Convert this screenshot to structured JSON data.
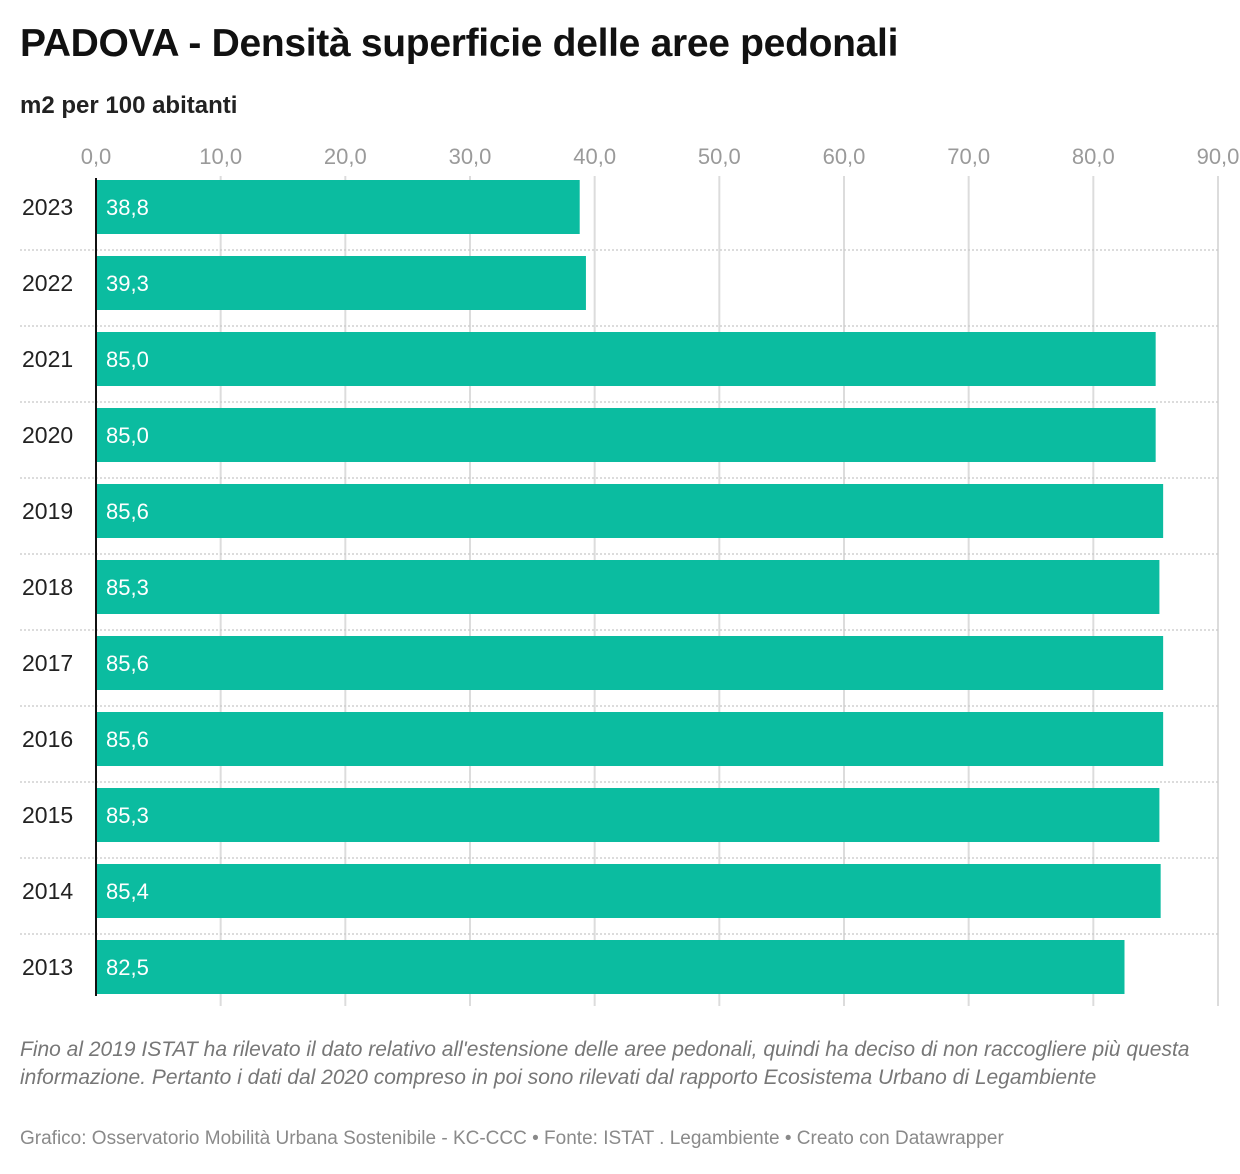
{
  "header": {
    "title": "PADOVA - Densità superficie delle aree pedonali",
    "subtitle": "m2 per 100 abitanti"
  },
  "footer": {
    "note": "Fino al 2019 ISTAT ha rilevato il dato relativo all'estensione delle aree pedonali, quindi ha deciso di non raccogliere più questa informazione. Pertanto i dati dal 2020 compreso in poi sono rilevati dal rapporto Ecosistema Urbano di Legambiente",
    "credits": "Grafico: Osservatorio Mobilità Urbana Sostenibile - KC-CCC • Fonte: ISTAT . Legambiente • Creato con Datawrapper"
  },
  "colors": {
    "bar": "#0bbca0",
    "grid": "#dcdcdc",
    "axis": "#111111"
  },
  "chart_data": {
    "type": "bar",
    "orientation": "horizontal",
    "title": "PADOVA - Densità superficie delle aree pedonali",
    "subtitle": "m2 per 100 abitanti",
    "categories": [
      "2023",
      "2022",
      "2021",
      "2020",
      "2019",
      "2018",
      "2017",
      "2016",
      "2015",
      "2014",
      "2013"
    ],
    "values": [
      38.8,
      39.3,
      85.0,
      85.0,
      85.6,
      85.3,
      85.6,
      85.6,
      85.3,
      85.4,
      82.5
    ],
    "value_labels": [
      "38,8",
      "39,3",
      "85,0",
      "85,0",
      "85,6",
      "85,3",
      "85,6",
      "85,6",
      "85,3",
      "85,4",
      "82,5"
    ],
    "xlim": [
      0,
      90
    ],
    "xticks": [
      0,
      10,
      20,
      30,
      40,
      50,
      60,
      70,
      80,
      90
    ],
    "xtick_labels": [
      "0,0",
      "10,0",
      "20,0",
      "30,0",
      "40,0",
      "50,0",
      "60,0",
      "70,0",
      "80,0",
      "90,0"
    ],
    "xaxis_position": "top",
    "grid": true,
    "legend": false
  }
}
